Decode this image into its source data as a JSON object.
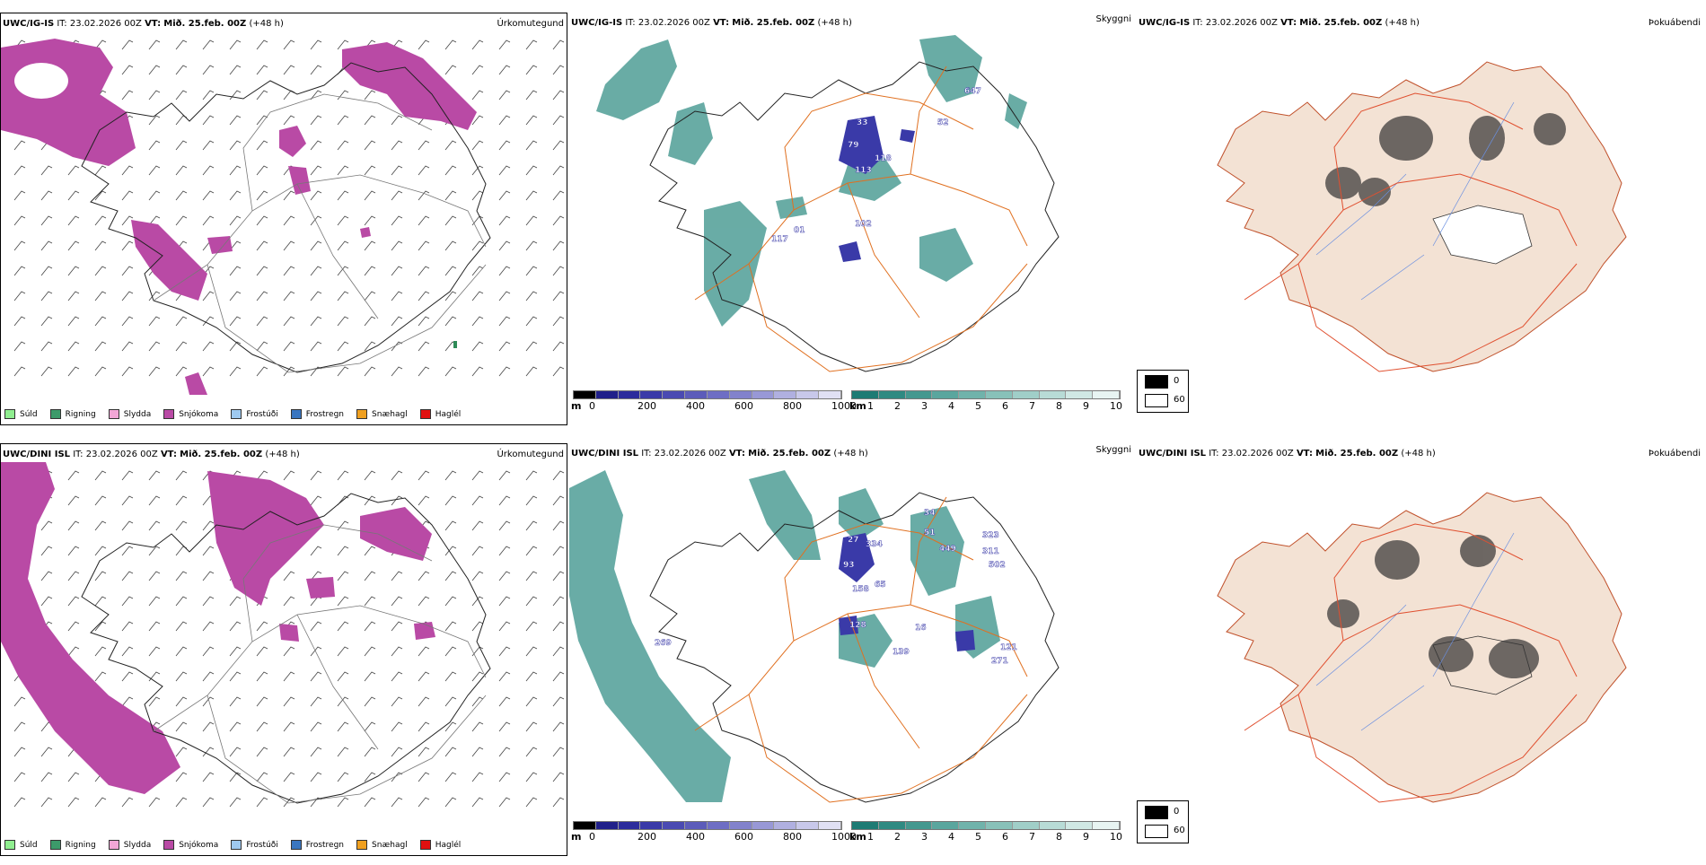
{
  "rows": [
    {
      "model": "UWC/IG-IS",
      "it_label": "IT:",
      "it_value": "23.02.2026 00Z",
      "vt_label": "VT:",
      "vt_value": "Mið. 25.feb. 00Z",
      "lead": "(+48 h)"
    },
    {
      "model": "UWC/DINI ISL",
      "it_label": "IT:",
      "it_value": "23.02.2026 00Z",
      "vt_label": "VT:",
      "vt_value": "Mið. 25.feb. 00Z",
      "lead": "(+48 h)"
    }
  ],
  "panel_titles": {
    "precip": "Úrkomutegund",
    "visibility": "Skyggni",
    "fog": "Þokuábendi"
  },
  "precip_legend": [
    {
      "label": "Súld",
      "color": "#90ee90"
    },
    {
      "label": "Rigning",
      "color": "#3c9a6a"
    },
    {
      "label": "Slydda",
      "color": "#f2a6d6"
    },
    {
      "label": "Snjókoma",
      "color": "#b94aa5"
    },
    {
      "label": "Frostúði",
      "color": "#9ec9f0"
    },
    {
      "label": "Frostregn",
      "color": "#3a76c0"
    },
    {
      "label": "Snæhagl",
      "color": "#f0a020"
    },
    {
      "label": "Haglél",
      "color": "#e01010"
    }
  ],
  "height_bar": {
    "unit": "m",
    "ticks": [
      "0",
      "200",
      "400",
      "600",
      "800",
      "1000"
    ],
    "colors": [
      "#000000",
      "#20208a",
      "#2c2c9c",
      "#3a3aa8",
      "#4a4ab2",
      "#5c5cba",
      "#6e6ec4",
      "#8282cc",
      "#9898d6",
      "#b0b0e0",
      "#c8c8ea",
      "#e0e0f4"
    ]
  },
  "visibility_bar": {
    "unit": "km",
    "ticks": [
      "1",
      "2",
      "3",
      "4",
      "5",
      "6",
      "7",
      "8",
      "9",
      "10"
    ],
    "colors": [
      "#1e7b74",
      "#2f8a82",
      "#44988f",
      "#5aa69e",
      "#70b3ab",
      "#88c1b9",
      "#a0cec8",
      "#b8dbd6",
      "#d0e8e4",
      "#e8f4f2"
    ]
  },
  "fog_legend": [
    {
      "label": "0",
      "color": "#000000"
    },
    {
      "label": "60",
      "color": "#ffffff"
    }
  ],
  "ceiling_labels_top": [
    "33",
    "79",
    "113",
    "118",
    "52",
    "647",
    "01",
    "102",
    "117"
  ],
  "ceiling_labels_bot": [
    "27",
    "334",
    "34",
    "51",
    "449",
    "323",
    "311",
    "502",
    "93",
    "158",
    "65",
    "128",
    "139",
    "121",
    "271",
    "269",
    "16"
  ]
}
